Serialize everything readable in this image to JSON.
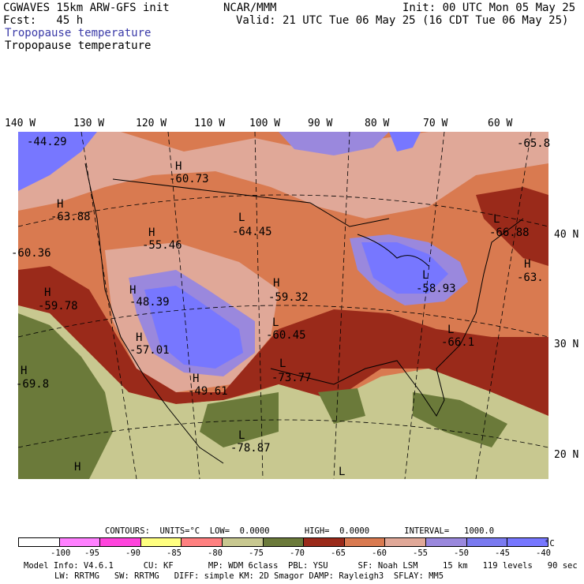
{
  "header": {
    "line1_left": "CGWAVES 15km ARW-GFS init",
    "line1_mid": "NCAR/MMM",
    "line1_right": "Init: 00 UTC Mon 05 May 25",
    "line2_left": "Fcst:   45 h",
    "line2_right": "Valid: 21 UTC Tue 06 May 25 (16 CDT Tue 06 May 25)",
    "field_blue": "Tropopause temperature",
    "field_black": "Tropopause temperature"
  },
  "longitudes": [
    "140 W",
    "130 W",
    "120 W",
    "110 W",
    "100 W",
    "90 W",
    "80 W",
    "70 W",
    "60 W"
  ],
  "latitudes": [
    "40 N",
    "30 N",
    "20 N"
  ],
  "labels": [
    {
      "mark": "",
      "value": "-44.29"
    },
    {
      "mark": "H",
      "value": "-60.73"
    },
    {
      "mark": "H",
      "value": "-63.88"
    },
    {
      "mark": "H",
      "value": "-55.46"
    },
    {
      "mark": "L",
      "value": "-64.45"
    },
    {
      "mark": "",
      "value": "-60.36"
    },
    {
      "mark": "H",
      "value": "-48.39"
    },
    {
      "mark": "H",
      "value": "-59.78"
    },
    {
      "mark": "H",
      "value": "-59.32"
    },
    {
      "mark": "L",
      "value": "-60.45"
    },
    {
      "mark": "H",
      "value": "-57.01"
    },
    {
      "mark": "H",
      "value": "-49.61"
    },
    {
      "mark": "L",
      "value": "-73.77"
    },
    {
      "mark": "H",
      "value": "-69.8"
    },
    {
      "mark": "L",
      "value": "-78.87"
    },
    {
      "mark": "L",
      "value": "-66.1"
    },
    {
      "mark": "L",
      "value": "-66.88"
    },
    {
      "mark": "L",
      "value": "-58.93"
    },
    {
      "mark": "H",
      "value": "-63."
    },
    {
      "mark": "",
      "value": "-65.8"
    },
    {
      "mark": "L",
      "value": ""
    },
    {
      "mark": "H",
      "value": ""
    }
  ],
  "contours_line": "CONTOURS:  UNITS=°C  LOW=  0.0000       HIGH=  0.0000       INTERVAL=   1000.0",
  "colorbar": {
    "colors": [
      "#ffffff",
      "#ff80ff",
      "#ff44dd",
      "#ffff80",
      "#ff8080",
      "#c8c890",
      "#6b7a3a",
      "#9a2a1a",
      "#d97a50",
      "#e0a898",
      "#9a88dd",
      "#7a7af0",
      "#7777ff"
    ],
    "ticks": [
      "-100",
      "-95",
      "-90",
      "-85",
      "-80",
      "-75",
      "-70",
      "-65",
      "-60",
      "-55",
      "-50",
      "-45",
      "-40",
      "°C"
    ]
  },
  "footer": {
    "line1": "Model Info: V4.6.1      CU: KF       MP: WDM 6class  PBL: YSU      SF: Noah LSM     15 km   119 levels   90 sec",
    "line2": "LW: RRTMG   SW: RRTMG   DIFF: simple KM: 2D Smagor DAMP: Rayleigh3  SFLAY: MM5"
  }
}
